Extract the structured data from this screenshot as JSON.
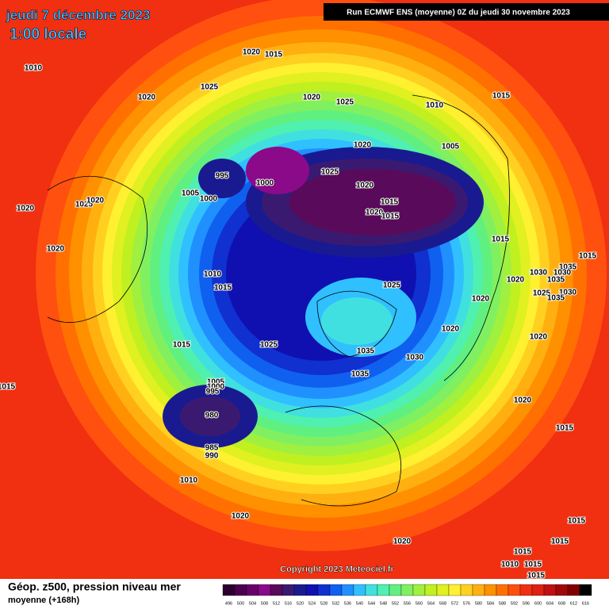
{
  "header": {
    "title": "jeudi 7 décembre 2023",
    "subtitle": "1:00 locale",
    "run": "Run ECMWF ENS (moyenne) 0Z du jeudi 30 novembre 2023"
  },
  "copyright": "Copyright 2023 Meteociel.fr",
  "footer": {
    "title": "Géop. z500, pression niveau mer",
    "subtitle": "moyenne  (+168h)"
  },
  "scale": {
    "values": [
      496,
      500,
      504,
      508,
      512,
      516,
      520,
      524,
      528,
      532,
      536,
      540,
      544,
      548,
      552,
      556,
      560,
      564,
      568,
      572,
      576,
      580,
      584,
      588,
      592,
      596,
      600,
      604,
      608,
      612,
      616
    ],
    "colors": [
      "#2b0030",
      "#4b0050",
      "#6a006a",
      "#8a0a8a",
      "#5a0a5a",
      "#3a1a70",
      "#1a1a90",
      "#1010b0",
      "#1030d0",
      "#1060f0",
      "#2090ff",
      "#30c0ff",
      "#40e0e0",
      "#50f0b0",
      "#60f080",
      "#80f060",
      "#a0f040",
      "#c0f020",
      "#e0f020",
      "#fff030",
      "#ffd020",
      "#ffb010",
      "#ff9000",
      "#ff7000",
      "#ff5010",
      "#f03010",
      "#e02010",
      "#c01010",
      "#a00808",
      "#800000",
      "#000000"
    ]
  },
  "isobars": [
    "1010",
    "1020",
    "1015",
    "1025",
    "1020",
    "1020",
    "1025",
    "1010",
    "1015",
    "1020",
    "1005",
    "995",
    "1000",
    "1025",
    "1020",
    "1005",
    "1000",
    "1015",
    "1020",
    "1015",
    "1025",
    "1020",
    "1020",
    "1020",
    "1015",
    "1015",
    "1010",
    "1015",
    "1025",
    "1030",
    "1035",
    "1030",
    "1020",
    "1035",
    "1025",
    "1030",
    "1035",
    "1020",
    "1020",
    "1020",
    "1015",
    "1025",
    "1035",
    "1030",
    "1035",
    "1015",
    "1005",
    "1000",
    "995",
    "980",
    "985",
    "990",
    "1020",
    "1015",
    "1010",
    "1020",
    "1020",
    "1015",
    "1015",
    "1015",
    "1010",
    "1015",
    "1015"
  ]
}
